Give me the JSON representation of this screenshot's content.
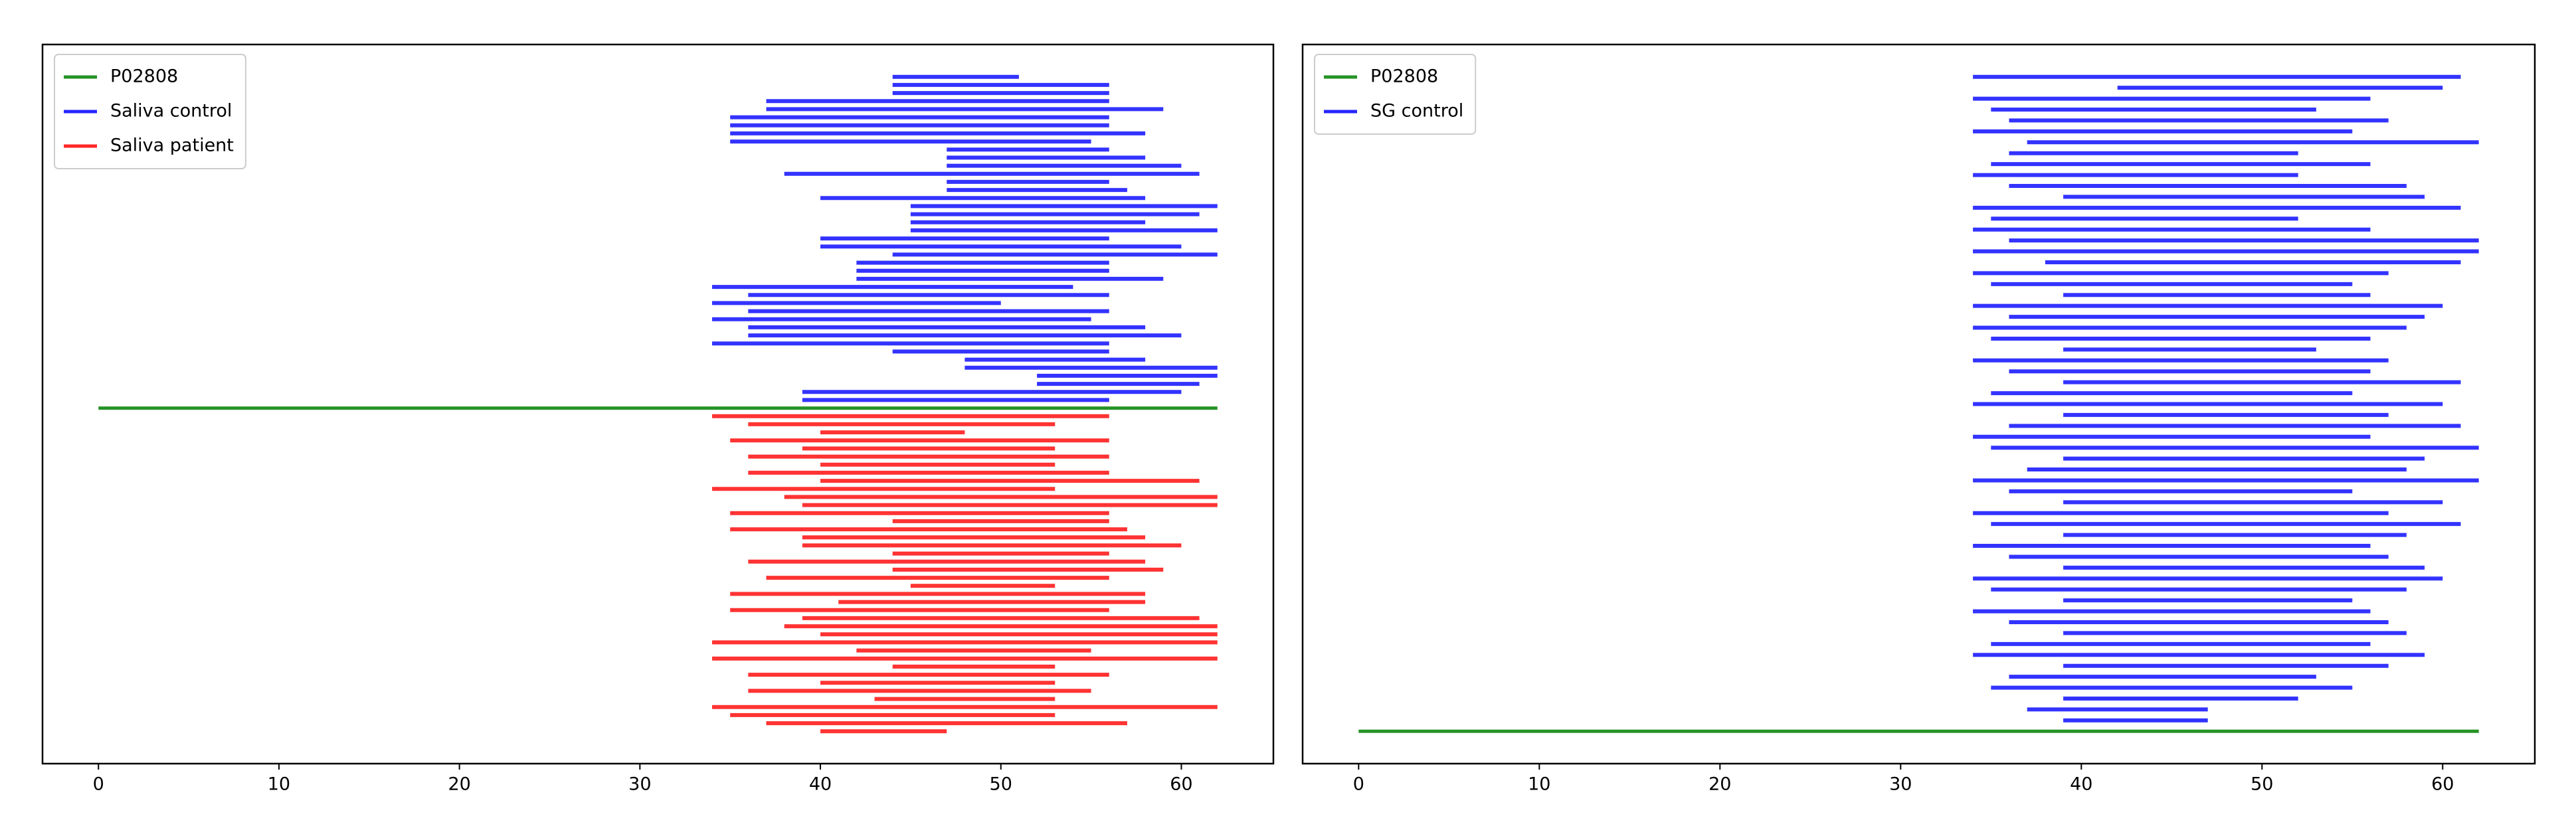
{
  "chart_data": [
    {
      "type": "segment",
      "xlim": [
        -3.1,
        65.1
      ],
      "xticks": [
        0,
        10,
        20,
        30,
        40,
        50,
        60
      ],
      "legend": "upper left",
      "series": [
        {
          "name": "P02808",
          "color": "#008000",
          "starts": [
            0
          ],
          "ends": [
            62
          ]
        },
        {
          "name": "Saliva control",
          "color": "#0000ff",
          "starts": [
            44,
            44,
            44,
            37,
            37,
            35,
            35,
            35,
            35,
            47,
            47,
            47,
            38,
            47,
            47,
            40,
            45,
            45,
            45,
            45,
            40,
            40,
            44,
            42,
            42,
            42,
            34,
            36,
            34,
            36,
            34,
            36,
            36,
            34,
            44,
            48,
            48,
            52,
            52,
            39,
            39
          ],
          "ends": [
            51,
            56,
            56,
            56,
            59,
            56,
            56,
            58,
            55,
            56,
            58,
            60,
            61,
            56,
            57,
            58,
            62,
            61,
            58,
            62,
            56,
            60,
            62,
            56,
            56,
            59,
            54,
            56,
            50,
            56,
            55,
            58,
            60,
            56,
            56,
            58,
            62,
            62,
            61,
            60,
            56
          ]
        },
        {
          "name": "Saliva patient",
          "color": "#ff0000",
          "starts": [
            34,
            36,
            40,
            35,
            39,
            36,
            40,
            36,
            40,
            34,
            38,
            39,
            35,
            44,
            35,
            39,
            39,
            44,
            36,
            44,
            37,
            45,
            35,
            41,
            35,
            39,
            38,
            40,
            34,
            42,
            34,
            44,
            36,
            40,
            36,
            43,
            34,
            35,
            37,
            40
          ],
          "ends": [
            56,
            53,
            48,
            56,
            53,
            56,
            53,
            56,
            61,
            53,
            62,
            62,
            56,
            56,
            57,
            58,
            60,
            56,
            58,
            59,
            56,
            53,
            58,
            58,
            56,
            61,
            62,
            62,
            62,
            55,
            62,
            53,
            56,
            53,
            55,
            53,
            62,
            53,
            57,
            47
          ]
        }
      ]
    },
    {
      "type": "segment",
      "xlim": [
        -3.1,
        65.1
      ],
      "xticks": [
        0,
        10,
        20,
        30,
        40,
        50,
        60
      ],
      "legend": "upper left",
      "series": [
        {
          "name": "P02808",
          "color": "#008000",
          "starts": [
            0
          ],
          "ends": [
            62
          ]
        },
        {
          "name": "SG control",
          "color": "#0000ff",
          "starts": [
            34,
            42,
            34,
            35,
            36,
            34,
            37,
            36,
            35,
            34,
            36,
            39,
            34,
            35,
            34,
            36,
            34,
            38,
            34,
            35,
            39,
            34,
            36,
            34,
            35,
            39,
            34,
            36,
            39,
            35,
            34,
            39,
            36,
            34,
            35,
            39,
            37,
            34,
            36,
            39,
            34,
            35,
            39,
            34,
            36,
            39,
            34,
            35,
            39,
            34,
            36,
            39,
            35,
            34,
            39,
            36,
            35,
            39,
            37,
            39
          ],
          "ends": [
            61,
            60,
            56,
            53,
            57,
            55,
            62,
            52,
            56,
            52,
            58,
            59,
            61,
            52,
            56,
            62,
            62,
            61,
            57,
            55,
            56,
            60,
            59,
            58,
            56,
            53,
            57,
            56,
            61,
            55,
            60,
            57,
            61,
            56,
            62,
            59,
            58,
            62,
            55,
            60,
            57,
            61,
            58,
            56,
            57,
            59,
            60,
            58,
            55,
            56,
            57,
            58,
            56,
            59,
            57,
            53,
            55,
            52,
            47,
            47
          ]
        }
      ]
    }
  ]
}
